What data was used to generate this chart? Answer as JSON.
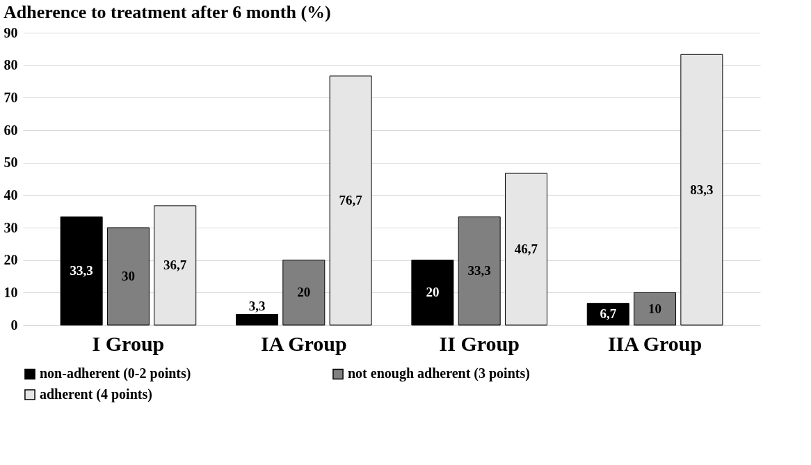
{
  "chart_data": {
    "type": "bar",
    "title": "Adherence to treatment after 6 month (%)",
    "categories": [
      "I Group",
      "IA Group",
      "II Group",
      "IIA Group"
    ],
    "series": [
      {
        "name": "non-adherent (0-2 points)",
        "color": "#000000",
        "values": [
          33.3,
          3.3,
          20,
          6.7
        ],
        "value_labels": [
          "33,3",
          "3,3",
          "20",
          "6,7"
        ]
      },
      {
        "name": "not enough adherent (3 points)",
        "color": "#808080",
        "values": [
          30,
          20,
          33.3,
          10
        ],
        "value_labels": [
          "30",
          "20",
          "33,3",
          "10"
        ]
      },
      {
        "name": "adherent (4 points)",
        "color": "#e6e6e6",
        "values": [
          36.7,
          76.7,
          46.7,
          83.3
        ],
        "value_labels": [
          "36,7",
          "76,7",
          "46,7",
          "83,3"
        ]
      }
    ],
    "ylim": [
      0,
      90
    ],
    "yticks": [
      0,
      10,
      20,
      30,
      40,
      50,
      60,
      70,
      80,
      90
    ],
    "grid": "y",
    "legend": "bottom"
  }
}
